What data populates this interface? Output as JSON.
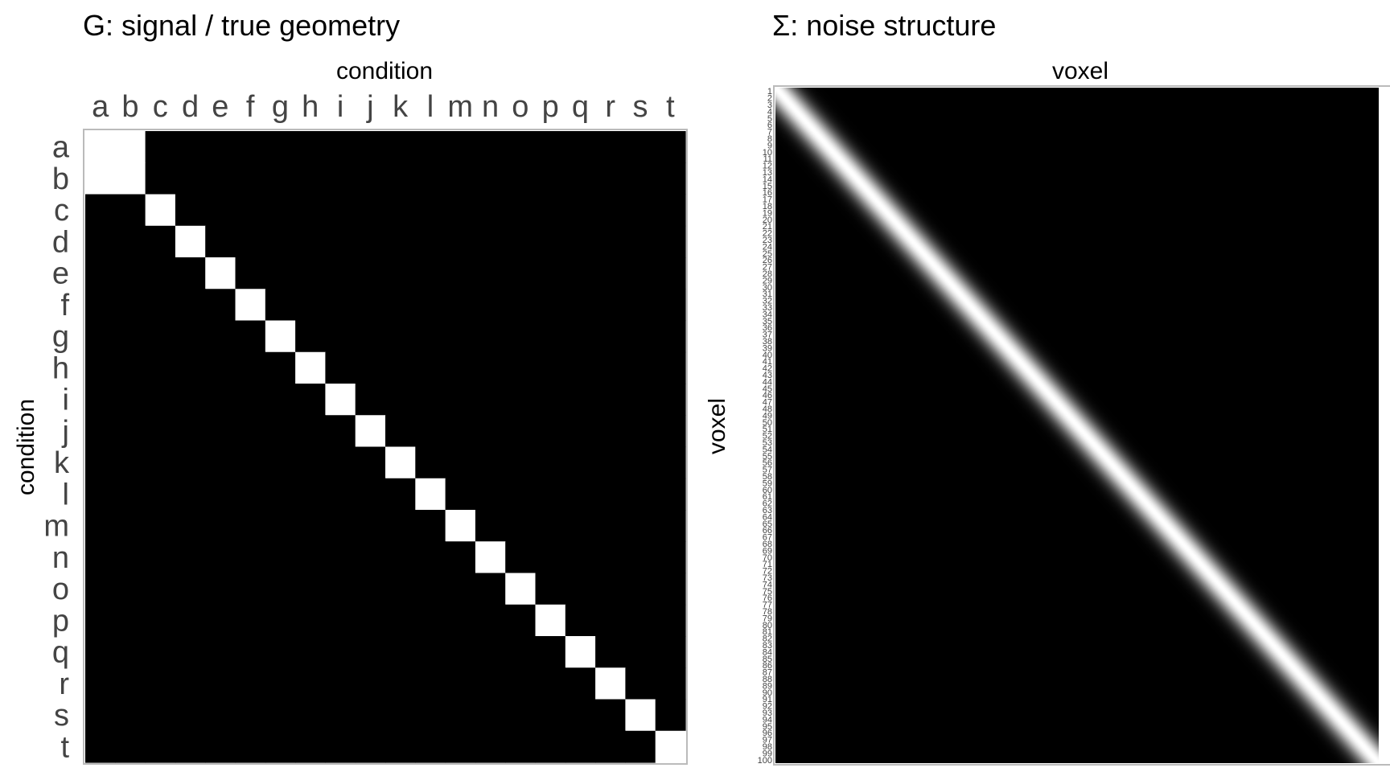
{
  "chart_data": [
    {
      "type": "heatmap",
      "title": "G: signal / true geometry",
      "xlabel": "condition",
      "ylabel": "condition",
      "x_position": "top",
      "categories": [
        "a",
        "b",
        "c",
        "d",
        "e",
        "f",
        "g",
        "h",
        "i",
        "j",
        "k",
        "l",
        "m",
        "n",
        "o",
        "p",
        "q",
        "r",
        "s",
        "t"
      ],
      "structure": "identity with conditions a and b fully correlated",
      "blocks": [
        [
          "a",
          "b"
        ]
      ],
      "value_range": [
        0,
        1
      ],
      "colors": {
        "low": "#000000",
        "high": "#ffffff"
      },
      "grid": false
    },
    {
      "type": "heatmap",
      "title": "Σ: noise structure",
      "xlabel": "voxel",
      "ylabel": "voxel",
      "x_position": "top",
      "n": 100,
      "y_ticks_start": 1,
      "y_ticks_end": 100,
      "structure": "banded diagonal, smooth decay with distance from diagonal",
      "decay_width_voxels": 2.2,
      "value_range": [
        0,
        1
      ],
      "colors": {
        "low": "#000000",
        "high": "#ffffff"
      },
      "grid": false
    }
  ]
}
